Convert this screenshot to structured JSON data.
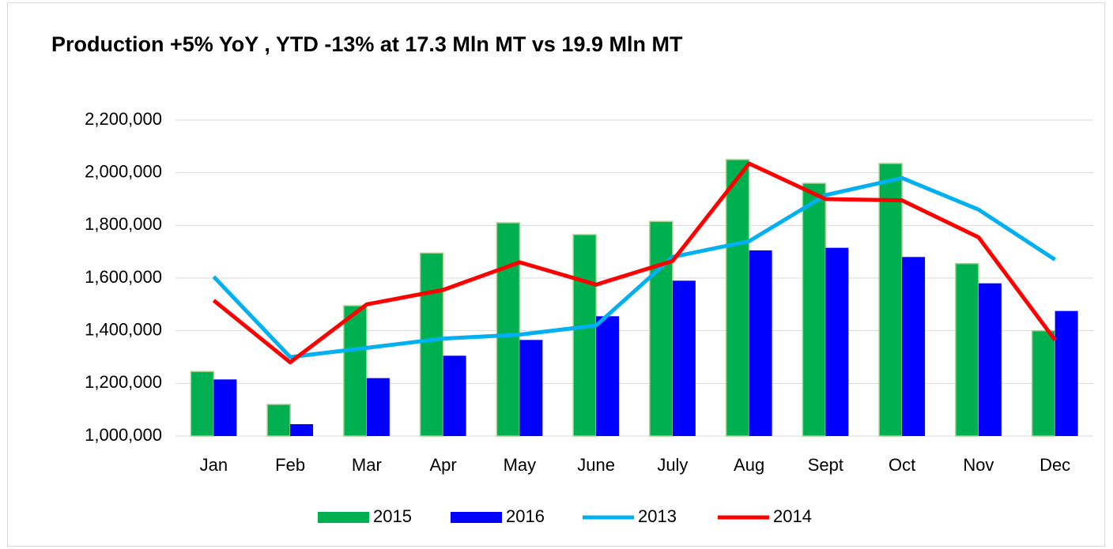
{
  "chart_data": {
    "type": "bar",
    "title": "Production +5% YoY , YTD -13% at 17.3 Mln MT vs 19.9 Mln MT",
    "categories": [
      "Jan",
      "Feb",
      "Mar",
      "Apr",
      "May",
      "June",
      "July",
      "Aug",
      "Sept",
      "Oct",
      "Nov",
      "Dec"
    ],
    "series": [
      {
        "name": "2015",
        "type": "bar",
        "color": "#00b050",
        "values": [
          1245000,
          1120000,
          1495000,
          1695000,
          1810000,
          1765000,
          1815000,
          2050000,
          1960000,
          2035000,
          1655000,
          1400000
        ]
      },
      {
        "name": "2016",
        "type": "bar",
        "color": "#0000ff",
        "values": [
          1215000,
          1045000,
          1220000,
          1305000,
          1365000,
          1455000,
          1590000,
          1705000,
          1715000,
          1680000,
          1580000,
          1475000
        ]
      },
      {
        "name": "2013",
        "type": "line",
        "color": "#00b0f0",
        "values": [
          1605000,
          1300000,
          1335000,
          1370000,
          1385000,
          1420000,
          1680000,
          1740000,
          1915000,
          1980000,
          1860000,
          1670000
        ]
      },
      {
        "name": "2014",
        "type": "line",
        "color": "#ff0000",
        "values": [
          1515000,
          1280000,
          1500000,
          1555000,
          1660000,
          1575000,
          1665000,
          2035000,
          1900000,
          1895000,
          1755000,
          1365000
        ]
      }
    ],
    "ylim": [
      1000000,
      2200000
    ],
    "yticks": [
      {
        "value": 1000000,
        "label": "1,000,000"
      },
      {
        "value": 1200000,
        "label": "1,200,000"
      },
      {
        "value": 1400000,
        "label": "1,400,000"
      },
      {
        "value": 1600000,
        "label": "1,600,000"
      },
      {
        "value": 1800000,
        "label": "1,800,000"
      },
      {
        "value": 2000000,
        "label": "2,000,000"
      },
      {
        "value": 2200000,
        "label": "2,200,000"
      }
    ],
    "grid": true,
    "legend": "bottom"
  }
}
